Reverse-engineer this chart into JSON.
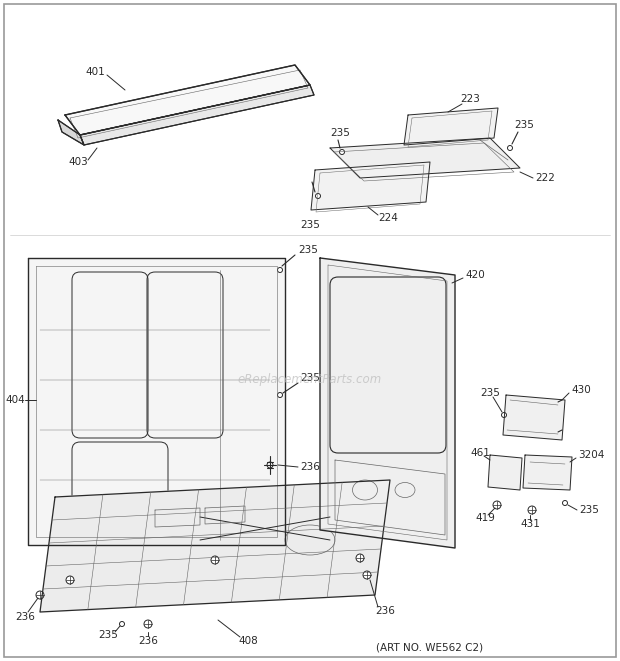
{
  "bg_color": "#ffffff",
  "art_no": "(ART NO. WE562 C2)",
  "watermark": "eReplacementParts.com",
  "line_color": "#2a2a2a",
  "light_line": "#666666"
}
